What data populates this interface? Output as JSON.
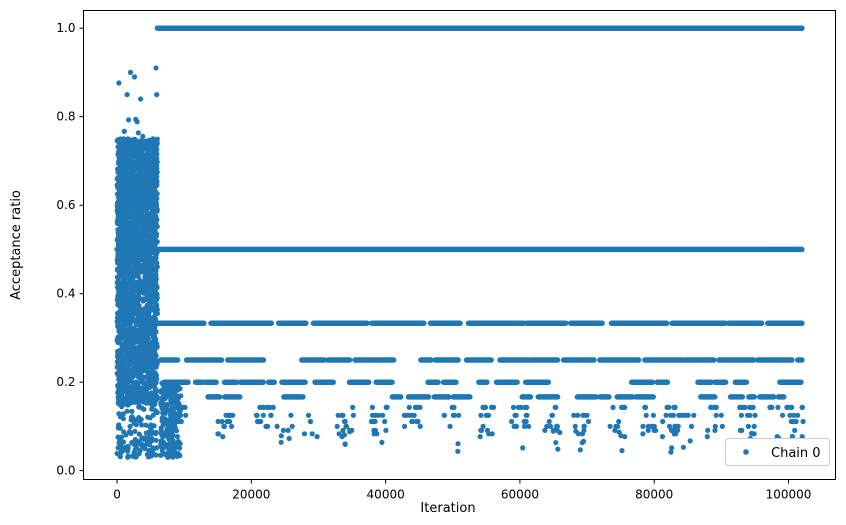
{
  "chart_data": {
    "type": "scatter",
    "xlabel": "Iteration",
    "ylabel": "Acceptance ratio",
    "xlim": [
      -5000,
      107000
    ],
    "ylim": [
      -0.02,
      1.04
    ],
    "xticks": [
      0,
      20000,
      40000,
      60000,
      80000,
      100000
    ],
    "xtick_labels": [
      "0",
      "20000",
      "40000",
      "60000",
      "80000",
      "100000"
    ],
    "yticks": [
      0.0,
      0.2,
      0.4,
      0.6,
      0.8,
      1.0
    ],
    "ytick_labels": [
      "0.0",
      "0.2",
      "0.4",
      "0.6",
      "0.8",
      "1.0"
    ],
    "grid": false,
    "legend_position": "bottom-right",
    "series": [
      {
        "name": "Chain 0",
        "color": "#1f77b4",
        "marker": "circle",
        "description_of_values": "Acceptance ratio per iteration for 0–102000 iterations",
        "dense_bands": [
          {
            "x_start": 6000,
            "x_end": 102000,
            "y": 1.0
          },
          {
            "x_start": 0,
            "x_end": 102000,
            "y": 0.5
          },
          {
            "x_start": 6000,
            "x_end": 102000,
            "y": 0.333
          },
          {
            "x_start": 6000,
            "x_end": 102000,
            "y": 0.25
          },
          {
            "x_start": 6000,
            "x_end": 102000,
            "y": 0.2
          },
          {
            "x_start": 6000,
            "x_end": 102000,
            "y": 0.167
          },
          {
            "x_start": 6000,
            "x_end": 102000,
            "y": 0.143
          },
          {
            "x_start": 6000,
            "x_end": 102000,
            "y": 0.125
          },
          {
            "x_start": 6000,
            "x_end": 102000,
            "y": 0.111
          },
          {
            "x_start": 6000,
            "x_end": 102000,
            "y": 0.1
          }
        ],
        "burn_in_cloud": {
          "x_start": 0,
          "x_end": 6000,
          "y_min": 0.03,
          "y_max": 0.91
        }
      }
    ]
  }
}
